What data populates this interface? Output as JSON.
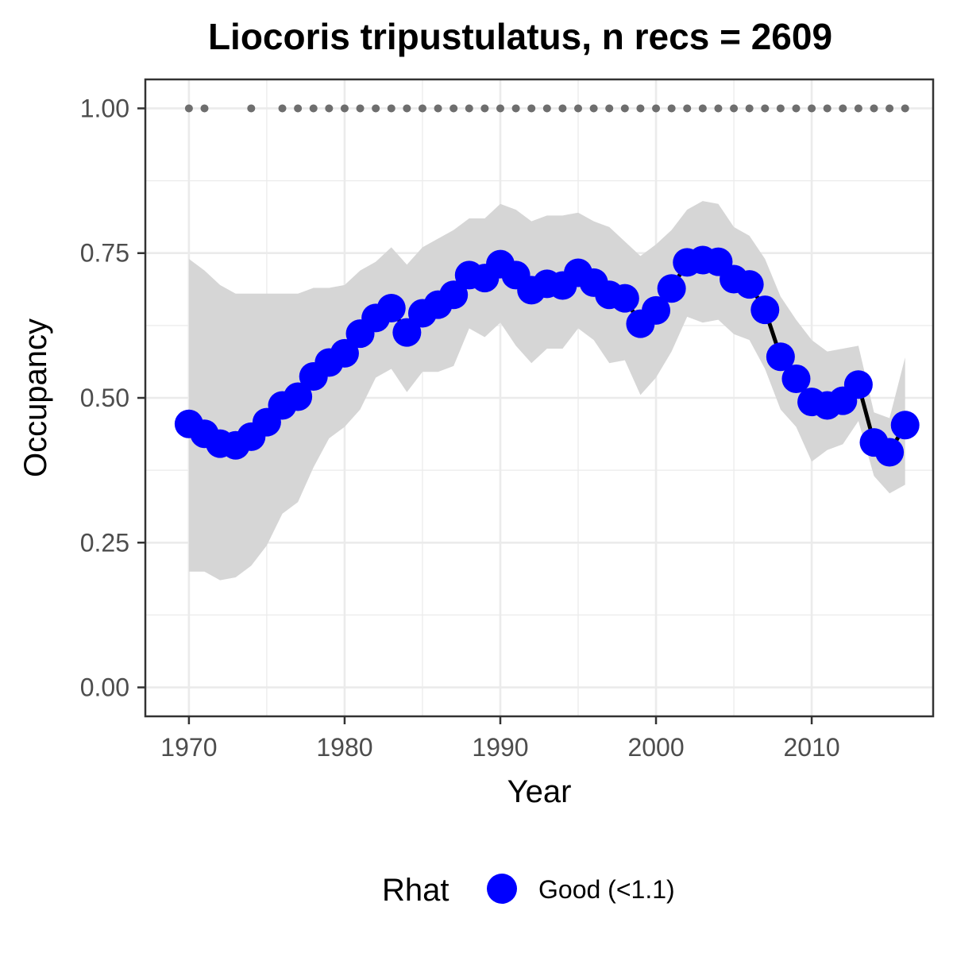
{
  "chart_data": {
    "type": "line",
    "title": "Liocoris tripustulatus, n recs = 2609",
    "xlabel": "Year",
    "ylabel": "Occupancy",
    "xlim": [
      1967.2,
      2017.8
    ],
    "ylim": [
      -0.05,
      1.05
    ],
    "x_ticks": [
      1970,
      1980,
      1990,
      2000,
      2010
    ],
    "x_tick_labels": [
      "1970",
      "1980",
      "1990",
      "2000",
      "2010"
    ],
    "y_ticks": [
      0,
      0.25,
      0.5,
      0.75,
      1.0
    ],
    "y_tick_labels": [
      "0.00",
      "0.25",
      "0.50",
      "0.75",
      "1.00"
    ],
    "grid": true,
    "legend": {
      "position": "bottom",
      "title": "Rhat",
      "items": [
        {
          "label": "Good (<1.1)",
          "color": "#0000ff"
        }
      ]
    },
    "colors": {
      "point": "#0000ff",
      "line": "#000000",
      "ribbon": "#d6d6d6",
      "record_dots": "#6e6e6e",
      "grid": "#ebebeb",
      "panel_border": "#333333"
    },
    "series": [
      {
        "name": "Good (<1.1)",
        "x": [
          1970,
          1971,
          1972,
          1973,
          1974,
          1975,
          1976,
          1977,
          1978,
          1979,
          1980,
          1981,
          1982,
          1983,
          1984,
          1985,
          1986,
          1987,
          1988,
          1989,
          1990,
          1991,
          1992,
          1993,
          1994,
          1995,
          1996,
          1997,
          1998,
          1999,
          2000,
          2001,
          2002,
          2003,
          2004,
          2005,
          2006,
          2007,
          2008,
          2009,
          2010,
          2011,
          2012,
          2013,
          2014,
          2015,
          2016
        ],
        "y": [
          0.455,
          0.438,
          0.421,
          0.418,
          0.433,
          0.458,
          0.487,
          0.502,
          0.537,
          0.561,
          0.577,
          0.611,
          0.638,
          0.655,
          0.613,
          0.646,
          0.661,
          0.678,
          0.712,
          0.707,
          0.731,
          0.712,
          0.686,
          0.697,
          0.694,
          0.716,
          0.699,
          0.678,
          0.672,
          0.628,
          0.651,
          0.689,
          0.734,
          0.738,
          0.735,
          0.705,
          0.696,
          0.652,
          0.571,
          0.533,
          0.493,
          0.487,
          0.495,
          0.523,
          0.423,
          0.406,
          0.453
        ],
        "lower": [
          0.2,
          0.2,
          0.185,
          0.19,
          0.21,
          0.245,
          0.3,
          0.32,
          0.38,
          0.43,
          0.45,
          0.48,
          0.535,
          0.55,
          0.51,
          0.545,
          0.545,
          0.555,
          0.62,
          0.605,
          0.63,
          0.59,
          0.56,
          0.585,
          0.585,
          0.62,
          0.6,
          0.56,
          0.565,
          0.505,
          0.535,
          0.58,
          0.64,
          0.63,
          0.635,
          0.61,
          0.6,
          0.55,
          0.48,
          0.45,
          0.39,
          0.41,
          0.42,
          0.46,
          0.365,
          0.335,
          0.35
        ],
        "upper": [
          0.74,
          0.72,
          0.695,
          0.68,
          0.68,
          0.68,
          0.68,
          0.68,
          0.69,
          0.69,
          0.695,
          0.72,
          0.735,
          0.76,
          0.73,
          0.76,
          0.775,
          0.79,
          0.81,
          0.81,
          0.835,
          0.825,
          0.805,
          0.815,
          0.815,
          0.82,
          0.805,
          0.795,
          0.77,
          0.745,
          0.765,
          0.79,
          0.825,
          0.84,
          0.835,
          0.795,
          0.78,
          0.74,
          0.675,
          0.635,
          0.6,
          0.58,
          0.585,
          0.59,
          0.475,
          0.465,
          0.57
        ]
      }
    ],
    "record_years": [
      1970,
      1971,
      1974,
      1976,
      1977,
      1978,
      1979,
      1980,
      1981,
      1982,
      1983,
      1984,
      1985,
      1986,
      1987,
      1988,
      1989,
      1990,
      1991,
      1992,
      1993,
      1994,
      1995,
      1996,
      1997,
      1998,
      1999,
      2000,
      2001,
      2002,
      2003,
      2004,
      2005,
      2006,
      2007,
      2008,
      2009,
      2010,
      2011,
      2012,
      2013,
      2014,
      2015,
      2016
    ],
    "record_y": 1.0
  }
}
